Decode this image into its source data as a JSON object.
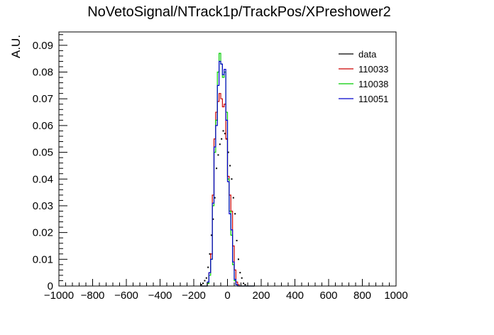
{
  "chart_data": {
    "type": "histogram",
    "title": "NoVetoSignal/NTrack1p/TrackPos/XPreshower2",
    "xlabel": "",
    "ylabel": "A.U.",
    "xlim": [
      -1000,
      1000
    ],
    "ylim": [
      0,
      0.095
    ],
    "x_ticks": [
      "−1000",
      "−800",
      "−600",
      "−400",
      "−200",
      "0",
      "200",
      "400",
      "600",
      "800",
      "1000"
    ],
    "y_ticks": [
      "0",
      "0.01",
      "0.02",
      "0.03",
      "0.04",
      "0.05",
      "0.06",
      "0.07",
      "0.08",
      "0.09"
    ],
    "legend_position": "top-right",
    "bin_edges": [
      -160,
      -150,
      -140,
      -130,
      -120,
      -110,
      -100,
      -90,
      -80,
      -70,
      -60,
      -50,
      -40,
      -30,
      -20,
      -10,
      0,
      10,
      20,
      30,
      40,
      50,
      60,
      70,
      80,
      90,
      100,
      110,
      120,
      130,
      140,
      150,
      160
    ],
    "series": [
      {
        "name": "data",
        "style": "points",
        "color": "#000000",
        "values": [
          0.0005,
          0.001,
          0.002,
          0.003,
          0.007,
          0.012,
          0.019,
          0.025,
          0.033,
          0.044,
          0.049,
          0.053,
          0.055,
          0.058,
          0.057,
          0.055,
          0.05,
          0.045,
          0.04,
          0.033,
          0.027,
          0.017,
          0.01,
          0.005,
          0.003,
          0.001,
          0.0005,
          0.0,
          0.0,
          0.0,
          0.0,
          0.0
        ]
      },
      {
        "name": "110033",
        "style": "step",
        "color": "#cc0000",
        "values": [
          0.0,
          0.0,
          0.0,
          0.0,
          0.001,
          0.005,
          0.012,
          0.034,
          0.055,
          0.065,
          0.069,
          0.072,
          0.07,
          0.067,
          0.068,
          0.055,
          0.041,
          0.034,
          0.028,
          0.015,
          0.006,
          0.0015,
          0.0005,
          0.0,
          0.0,
          0.0,
          0.0,
          0.0,
          0.0,
          0.0,
          0.0,
          0.0
        ]
      },
      {
        "name": "110038",
        "style": "step",
        "color": "#00cc00",
        "values": [
          0.0,
          0.0,
          0.0,
          0.0,
          0.001,
          0.004,
          0.01,
          0.03,
          0.05,
          0.062,
          0.08,
          0.087,
          0.083,
          0.078,
          0.08,
          0.065,
          0.04,
          0.028,
          0.019,
          0.008,
          0.002,
          0.0005,
          0.0,
          0.0,
          0.0,
          0.0,
          0.0,
          0.0,
          0.0,
          0.0,
          0.0,
          0.0
        ]
      },
      {
        "name": "110051",
        "style": "step",
        "color": "#0000cc",
        "values": [
          0.0,
          0.0,
          0.0,
          0.0,
          0.0015,
          0.005,
          0.01,
          0.031,
          0.052,
          0.06,
          0.075,
          0.084,
          0.083,
          0.079,
          0.081,
          0.062,
          0.039,
          0.027,
          0.021,
          0.009,
          0.0025,
          0.0005,
          0.0,
          0.0,
          0.0,
          0.0,
          0.0,
          0.0,
          0.0,
          0.0,
          0.0,
          0.0
        ]
      }
    ]
  }
}
